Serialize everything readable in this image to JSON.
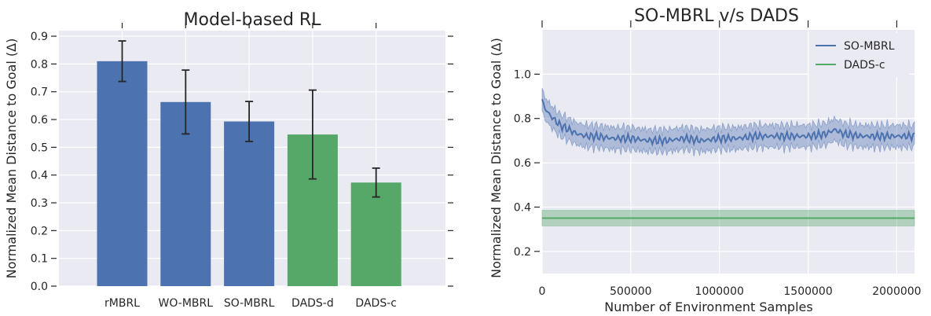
{
  "chart_data": [
    {
      "type": "bar",
      "title": "Model-based RL",
      "xlabel": "",
      "ylabel": "Normalized Mean Distance to Goal (Δ)",
      "categories": [
        "rMBRL",
        "WO-MBRL",
        "SO-MBRL",
        "DADS-d",
        "DADS-c"
      ],
      "values": [
        0.81,
        0.663,
        0.593,
        0.546,
        0.373
      ],
      "error": [
        0.073,
        0.115,
        0.072,
        0.16,
        0.052
      ],
      "bar_colors": [
        "#4c72b0",
        "#4c72b0",
        "#4c72b0",
        "#55a868",
        "#55a868"
      ],
      "ylim": [
        0,
        0.92
      ],
      "yticks": [
        0.0,
        0.1,
        0.2,
        0.3,
        0.4,
        0.5,
        0.6,
        0.7,
        0.8,
        0.9
      ],
      "ytick_labels": [
        "0.0",
        "0.1",
        "0.2",
        "0.3",
        "0.4",
        "0.5",
        "0.6",
        "0.7",
        "0.8",
        "0.9"
      ],
      "grid": true
    },
    {
      "type": "line",
      "title": "SO-MBRL v/s DADS",
      "xlabel": "Number of Environment Samples",
      "ylabel": "Normalized Mean Distance to Goal (Δ)",
      "xlim": [
        0,
        2100000
      ],
      "ylim": [
        0.1,
        1.2
      ],
      "xticks": [
        0,
        500000,
        1000000,
        1500000,
        2000000
      ],
      "xtick_labels": [
        "0",
        "500000",
        "1000000",
        "1500000",
        "2000000"
      ],
      "yticks": [
        0.2,
        0.4,
        0.6,
        0.8,
        1.0
      ],
      "ytick_labels": [
        "0.2",
        "0.4",
        "0.6",
        "0.8",
        "1.0"
      ],
      "grid": true,
      "legend_position": "top-right",
      "series": [
        {
          "name": "SO-MBRL",
          "color": "#4c72b0",
          "x": [
            0,
            20000,
            50000,
            100000,
            150000,
            200000,
            250000,
            300000,
            400000,
            500000,
            600000,
            700000,
            800000,
            900000,
            1000000,
            1100000,
            1200000,
            1300000,
            1400000,
            1500000,
            1600000,
            1650000,
            1700000,
            1800000,
            1900000,
            2000000,
            2100000
          ],
          "y": [
            0.88,
            0.84,
            0.81,
            0.77,
            0.75,
            0.73,
            0.72,
            0.72,
            0.71,
            0.71,
            0.7,
            0.7,
            0.71,
            0.7,
            0.71,
            0.71,
            0.72,
            0.72,
            0.72,
            0.72,
            0.73,
            0.75,
            0.73,
            0.72,
            0.72,
            0.72,
            0.72
          ],
          "band_halfwidth": 0.05
        },
        {
          "name": "DADS-c",
          "color": "#55a868",
          "x": [
            0,
            2100000
          ],
          "y": [
            0.35,
            0.35
          ],
          "band_halfwidth": 0.035
        }
      ]
    }
  ]
}
